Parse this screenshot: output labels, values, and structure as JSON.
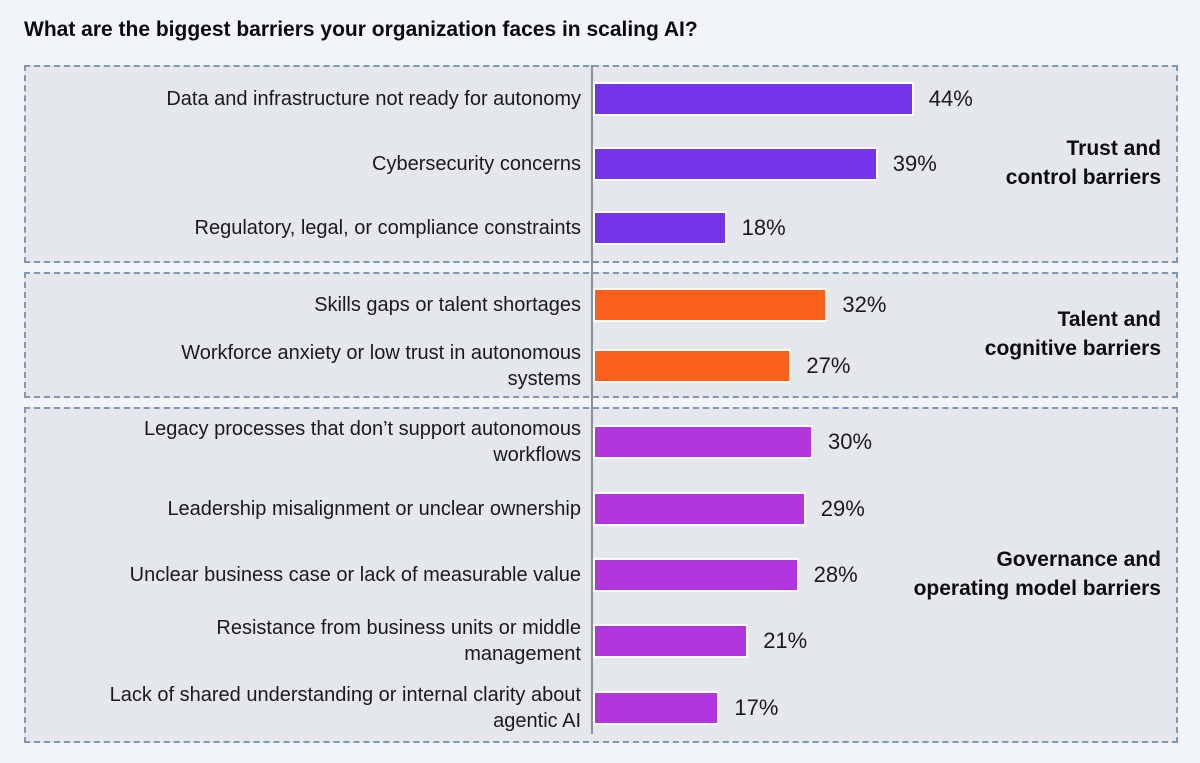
{
  "page": {
    "title": "What are the biggest barriers your organization faces in scaling AI?"
  },
  "chart_data": {
    "type": "bar",
    "orientation": "horizontal",
    "title": "What are the biggest barriers your organization faces in scaling AI?",
    "unit": "percent",
    "value_axis_shown": false,
    "grid": false,
    "value_labels_shown": true,
    "groups": [
      {
        "name": "Trust and control barriers",
        "display_label": "Trust and\ncontrol barriers",
        "color": "#7334EA",
        "items": [
          {
            "label": "Data and infrastructure not ready for autonomy",
            "value": 44,
            "value_label": "44%"
          },
          {
            "label": "Cybersecurity concerns",
            "value": 39,
            "value_label": "39%"
          },
          {
            "label": "Regulatory, legal, or compliance constraints",
            "value": 18,
            "value_label": "18%"
          }
        ]
      },
      {
        "name": "Talent and cognitive barriers",
        "display_label": "Talent and\ncognitive barriers",
        "color": "#FB611B",
        "items": [
          {
            "label": "Skills gaps or talent shortages",
            "value": 32,
            "value_label": "32%"
          },
          {
            "label": "Workforce anxiety or low trust in autonomous\nsystems",
            "value": 27,
            "value_label": "27%"
          }
        ]
      },
      {
        "name": "Governance and operating model barriers",
        "display_label": "Governance and\noperating model barriers",
        "color": "#B236DD",
        "items": [
          {
            "label": "Legacy processes that don’t support autonomous\nworkflows",
            "value": 30,
            "value_label": "30%"
          },
          {
            "label": "Leadership misalignment or unclear ownership",
            "value": 29,
            "value_label": "29%"
          },
          {
            "label": "Unclear business case or lack of measurable value",
            "value": 28,
            "value_label": "28%"
          },
          {
            "label": "Resistance from business units or middle\nmanagement",
            "value": 21,
            "value_label": "21%"
          },
          {
            "label": "Lack of shared understanding or internal clarity about\nagentic AI",
            "value": 17,
            "value_label": "17%"
          }
        ]
      }
    ],
    "style_colors": {
      "page_background": "#F1F5FA",
      "panel_background": "#E4E7EC",
      "panel_border": "#8197B5",
      "axis_line": "#8B8F96",
      "bar_outline": "#FFFFFF",
      "text": "#1A1A1A"
    }
  }
}
